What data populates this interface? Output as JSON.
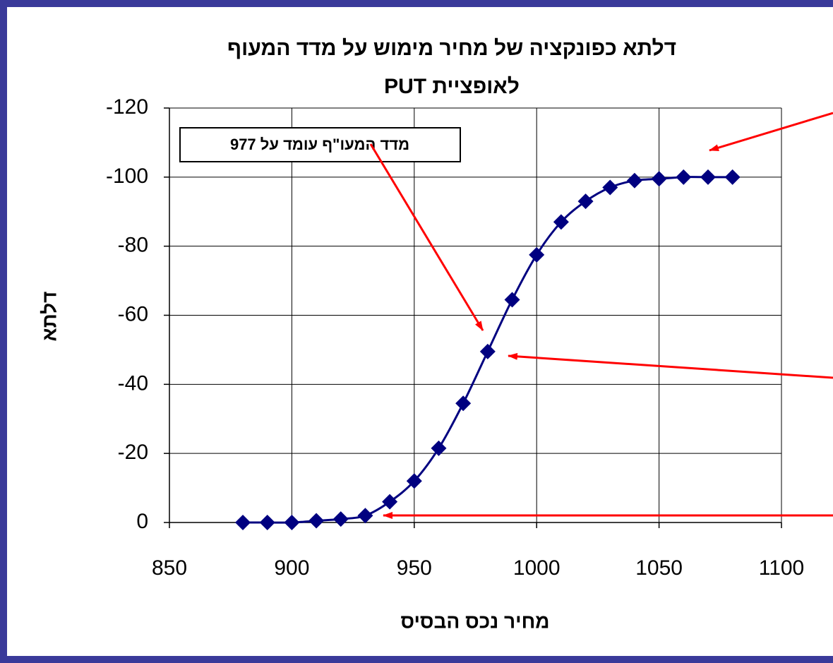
{
  "chart_data": {
    "type": "line",
    "title": [
      "דלתא כפונקציה של מחיר מימוש על מדד המעוף",
      "לאופציית PUT"
    ],
    "x_label": "מחיר נכס הבסיס",
    "y_label": "דלתא",
    "annotation": "מדד המעו\"ף עומד על 977",
    "x": [
      880,
      890,
      900,
      910,
      920,
      930,
      940,
      950,
      960,
      970,
      980,
      990,
      1000,
      1010,
      1020,
      1030,
      1040,
      1050,
      1060,
      1070,
      1080
    ],
    "series": [
      {
        "color": "#000080",
        "values": [
          0,
          0,
          0,
          -0.5,
          -1,
          -2,
          -6,
          -12,
          -21.5,
          -34.5,
          -49.5,
          -64.5,
          -77.5,
          -87,
          -93,
          -97,
          -99,
          -99.5,
          -100,
          -100,
          -100
        ]
      }
    ],
    "xlim": [
      850,
      1100
    ],
    "xticks": [
      850,
      900,
      950,
      1000,
      1050,
      1100
    ],
    "ylim": [
      0,
      -120
    ],
    "yticks": [
      0,
      -20,
      -40,
      -60,
      -80,
      -100,
      -120
    ],
    "grid": true
  }
}
